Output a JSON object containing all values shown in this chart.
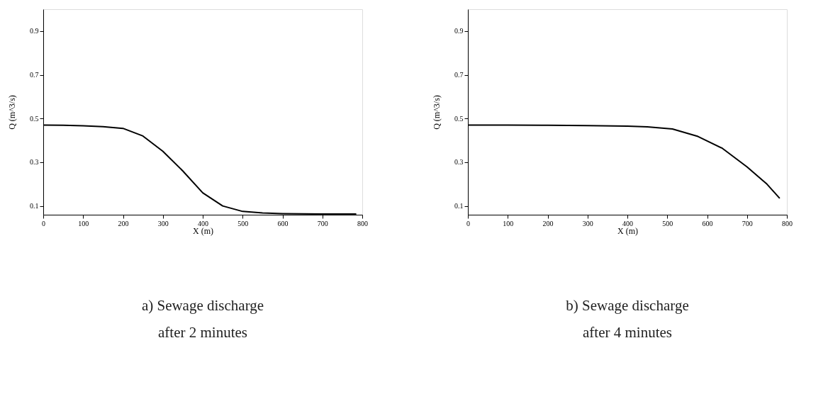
{
  "chart_data": [
    {
      "type": "line",
      "title": "a)  Sewage discharge\nafter 2 minutes",
      "xlabel": "X (m)",
      "ylabel": "Q (m^3/s)",
      "x": [
        0,
        50,
        100,
        150,
        200,
        250,
        300,
        350,
        400,
        450,
        500,
        550,
        600,
        650,
        700,
        785
      ],
      "series": [
        {
          "color": "#000000",
          "values": [
            0.47,
            0.469,
            0.467,
            0.463,
            0.455,
            0.42,
            0.35,
            0.26,
            0.16,
            0.1,
            0.075,
            0.068,
            0.065,
            0.064,
            0.063,
            0.063
          ]
        }
      ],
      "xlim": [
        0,
        800
      ],
      "xticks": [
        0,
        100,
        200,
        300,
        400,
        500,
        600,
        700,
        800
      ],
      "ylim": [
        0.06,
        1.0
      ],
      "yticks": [
        0.1,
        0.3,
        0.5,
        0.7,
        0.9
      ],
      "grid": false
    },
    {
      "type": "line",
      "title": "b)  Sewage discharge\nafter 4 minutes",
      "xlabel": "X (m)",
      "ylabel": "Q (m^3/s)",
      "x": [
        0,
        100,
        200,
        300,
        400,
        450,
        513,
        577,
        638,
        700,
        750,
        782
      ],
      "series": [
        {
          "color": "#000000",
          "values": [
            0.47,
            0.47,
            0.469,
            0.468,
            0.465,
            0.462,
            0.452,
            0.418,
            0.364,
            0.279,
            0.2,
            0.135
          ]
        }
      ],
      "xlim": [
        0,
        800
      ],
      "xticks": [
        0,
        100,
        200,
        300,
        400,
        500,
        600,
        700,
        800
      ],
      "ylim": [
        0.06,
        1.0
      ],
      "yticks": [
        0.1,
        0.3,
        0.5,
        0.7,
        0.9
      ],
      "grid": false
    }
  ]
}
